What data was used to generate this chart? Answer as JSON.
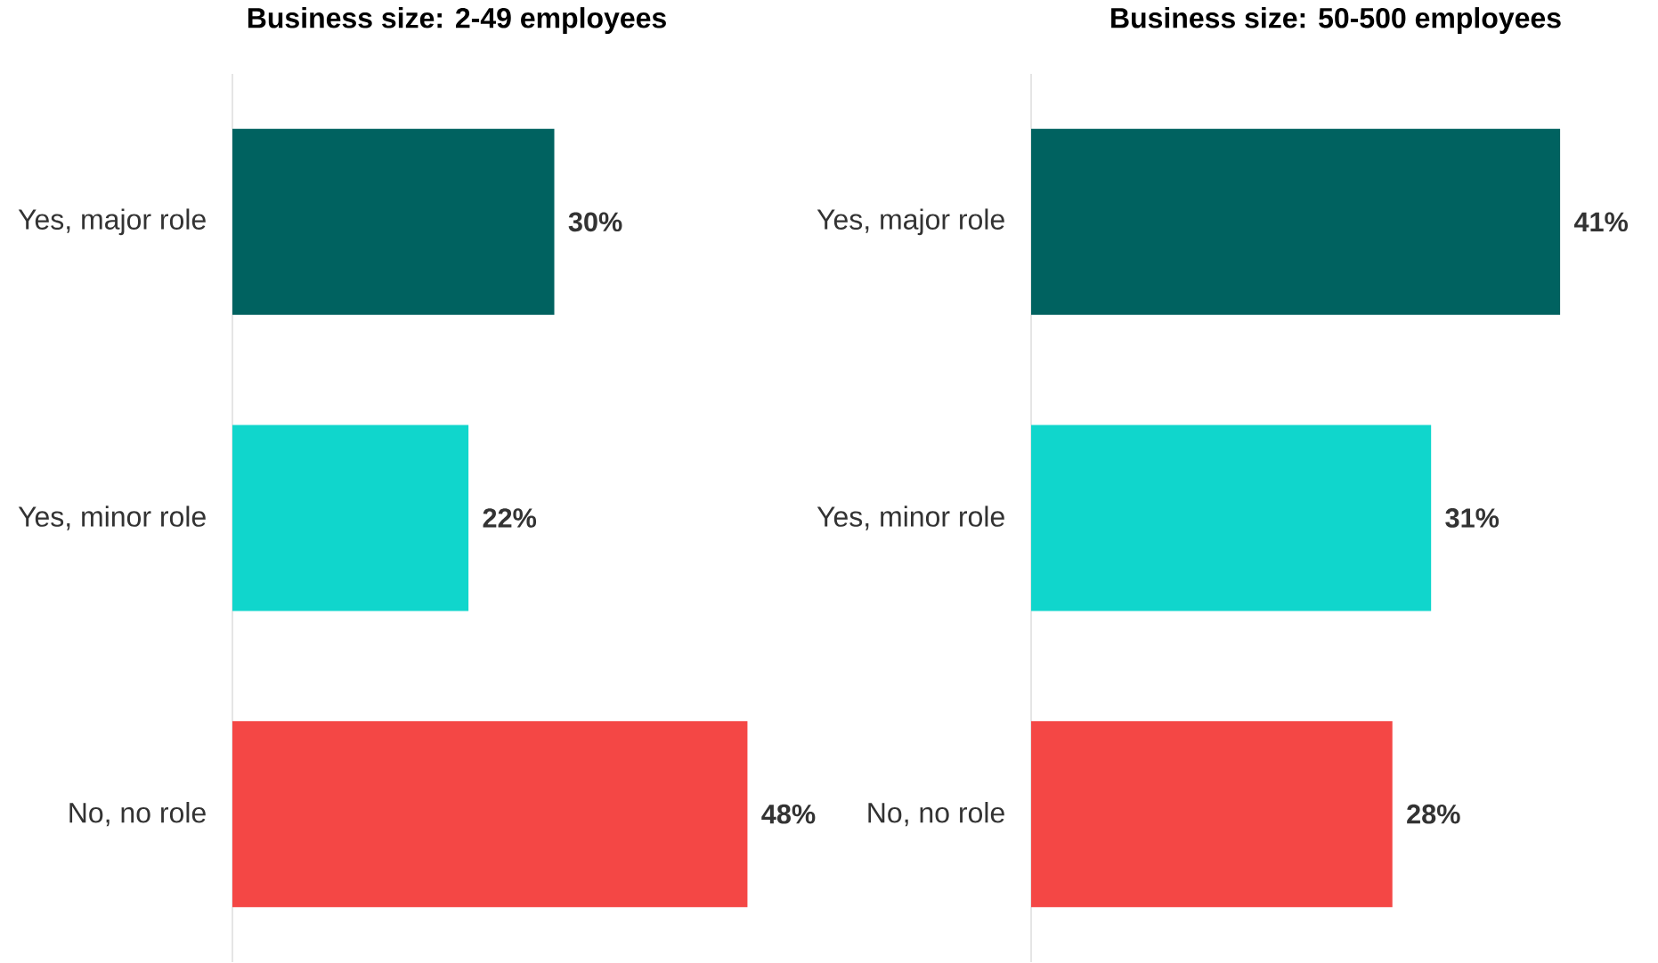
{
  "chart_data": [
    {
      "type": "bar",
      "orientation": "horizontal",
      "title": "Business size: 2-49 employees",
      "categories": [
        "Yes, major role",
        "Yes, minor role",
        "No, no role"
      ],
      "values": [
        30,
        22,
        48
      ],
      "value_labels": [
        "30%",
        "22%",
        "48%"
      ],
      "colors": [
        "#006260",
        "#10d6cc",
        "#f44745"
      ]
    },
    {
      "type": "bar",
      "orientation": "horizontal",
      "title": "Business size: 50-500 employees",
      "categories": [
        "Yes, major role",
        "Yes, minor role",
        "No, no role"
      ],
      "values": [
        41,
        31,
        28
      ],
      "value_labels": [
        "41%",
        "31%",
        "28%"
      ],
      "colors": [
        "#006260",
        "#10d6cc",
        "#f44745"
      ]
    }
  ]
}
